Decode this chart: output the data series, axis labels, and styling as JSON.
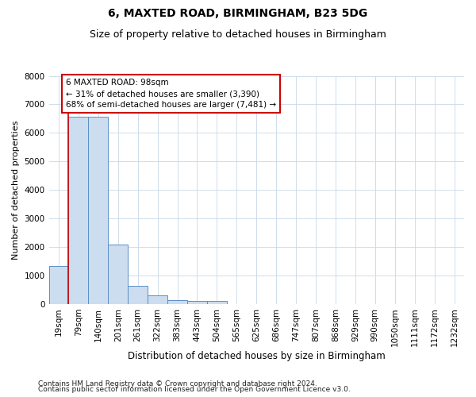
{
  "title1": "6, MAXTED ROAD, BIRMINGHAM, B23 5DG",
  "title2": "Size of property relative to detached houses in Birmingham",
  "xlabel": "Distribution of detached houses by size in Birmingham",
  "ylabel": "Number of detached properties",
  "footnote1": "Contains HM Land Registry data © Crown copyright and database right 2024.",
  "footnote2": "Contains public sector information licensed under the Open Government Licence v3.0.",
  "categories": [
    "19sqm",
    "79sqm",
    "140sqm",
    "201sqm",
    "261sqm",
    "322sqm",
    "383sqm",
    "443sqm",
    "504sqm",
    "565sqm",
    "625sqm",
    "686sqm",
    "747sqm",
    "807sqm",
    "868sqm",
    "929sqm",
    "990sqm",
    "1050sqm",
    "1111sqm",
    "1172sqm",
    "1232sqm"
  ],
  "values": [
    1320,
    6580,
    6580,
    2080,
    640,
    300,
    140,
    100,
    100,
    0,
    0,
    0,
    0,
    0,
    0,
    0,
    0,
    0,
    0,
    0,
    0
  ],
  "bar_color": "#ccddf0",
  "bar_edge_color": "#5b8fc7",
  "property_line_x": 0.5,
  "property_line_color": "#cc0000",
  "annotation_text": "6 MAXTED ROAD: 98sqm\n← 31% of detached houses are smaller (3,390)\n68% of semi-detached houses are larger (7,481) →",
  "annotation_box_facecolor": "#ffffff",
  "annotation_box_edgecolor": "#cc0000",
  "ylim": [
    0,
    8000
  ],
  "yticks": [
    0,
    1000,
    2000,
    3000,
    4000,
    5000,
    6000,
    7000,
    8000
  ],
  "grid_color": "#c8d8e8",
  "background_color": "#ffffff",
  "title1_fontsize": 10,
  "title2_fontsize": 9,
  "xlabel_fontsize": 8.5,
  "ylabel_fontsize": 8,
  "tick_fontsize": 7.5,
  "annot_fontsize": 7.5,
  "footnote_fontsize": 6.5
}
